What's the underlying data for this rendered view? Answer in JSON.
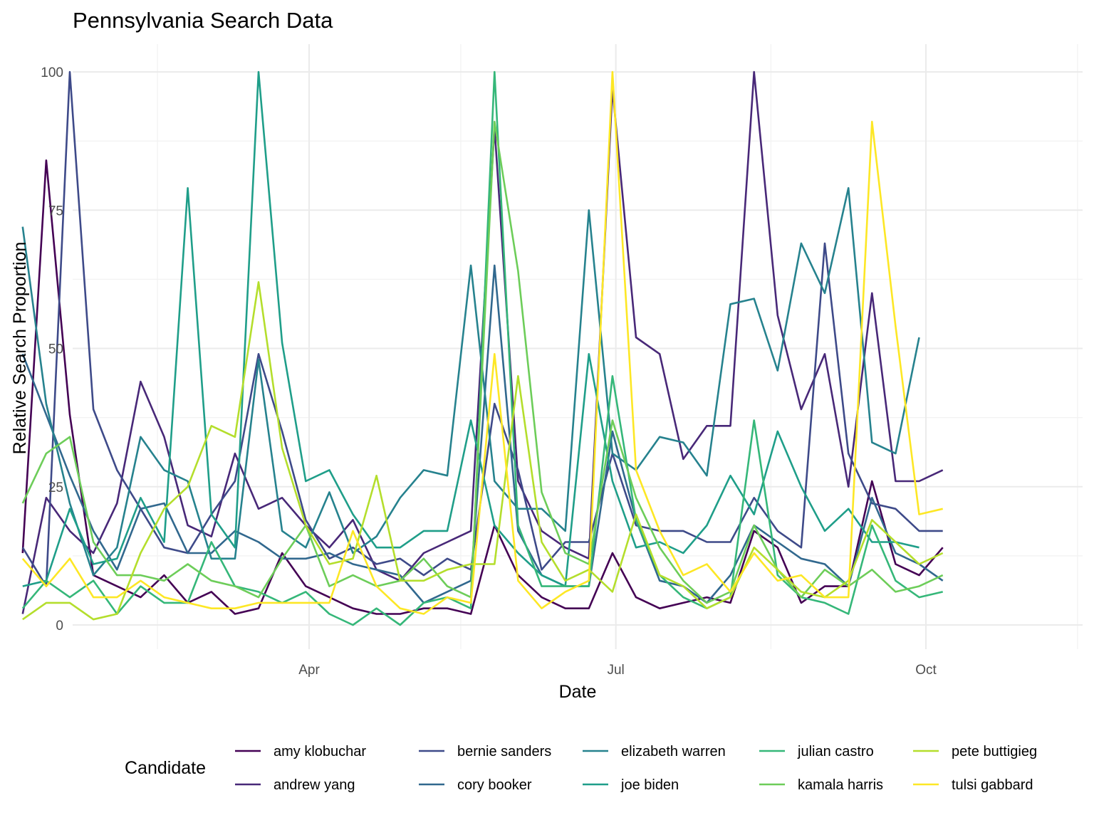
{
  "chart_data": {
    "type": "line",
    "title": "Pennsylvania Search Data",
    "xlabel": "Date",
    "ylabel": "Relative Search Proportion",
    "ylim": [
      0,
      100
    ],
    "yticks": [
      0,
      25,
      50,
      75,
      100
    ],
    "xticks": [
      {
        "label": "Apr",
        "date": "2019-04-01"
      },
      {
        "label": "Jul",
        "date": "2019-07-01"
      },
      {
        "label": "Oct",
        "date": "2019-10-01"
      }
    ],
    "grid": true,
    "legend": {
      "title": "Candidate",
      "position": "bottom"
    },
    "x": [
      "2019-01-06",
      "2019-01-13",
      "2019-01-20",
      "2019-01-27",
      "2019-02-03",
      "2019-02-10",
      "2019-02-17",
      "2019-02-24",
      "2019-03-03",
      "2019-03-10",
      "2019-03-17",
      "2019-03-24",
      "2019-03-31",
      "2019-04-07",
      "2019-04-14",
      "2019-04-21",
      "2019-04-28",
      "2019-05-05",
      "2019-05-12",
      "2019-05-19",
      "2019-05-26",
      "2019-06-02",
      "2019-06-09",
      "2019-06-16",
      "2019-06-23",
      "2019-06-30",
      "2019-07-07",
      "2019-07-14",
      "2019-07-21",
      "2019-07-28",
      "2019-08-04",
      "2019-08-11",
      "2019-08-18",
      "2019-08-25",
      "2019-09-01",
      "2019-09-08",
      "2019-09-15",
      "2019-09-22",
      "2019-09-29",
      "2019-10-06",
      "2019-10-13",
      "2019-10-20",
      "2019-10-27",
      "2019-11-03"
    ],
    "series": [
      {
        "name": "amy klobuchar",
        "color": "#440154",
        "values": [
          13,
          84,
          38,
          9,
          7,
          5,
          9,
          4,
          6,
          2,
          3,
          13,
          7,
          5,
          3,
          2,
          2,
          3,
          3,
          2,
          18,
          9,
          5,
          3,
          3,
          13,
          5,
          3,
          4,
          5,
          4,
          17,
          14,
          4,
          7,
          7,
          26,
          11,
          9,
          14,
          null,
          null,
          null,
          null
        ]
      },
      {
        "name": "andrew yang",
        "color": "#482878",
        "values": [
          2,
          23,
          17,
          13,
          22,
          44,
          34,
          18,
          16,
          31,
          21,
          23,
          18,
          14,
          19,
          10,
          8,
          13,
          15,
          17,
          90,
          26,
          17,
          14,
          12,
          97,
          52,
          49,
          30,
          36,
          36,
          100,
          56,
          39,
          49,
          25,
          60,
          26,
          26,
          28,
          null,
          null,
          null,
          null
        ]
      },
      {
        "name": "bernie sanders",
        "color": "#3E4A89",
        "values": [
          14,
          7,
          100,
          39,
          28,
          21,
          14,
          13,
          20,
          26,
          49,
          35,
          19,
          12,
          14,
          11,
          12,
          9,
          12,
          10,
          40,
          28,
          10,
          15,
          15,
          31,
          18,
          17,
          17,
          15,
          15,
          23,
          17,
          14,
          69,
          31,
          22,
          21,
          17,
          17,
          null,
          null,
          null,
          null
        ]
      },
      {
        "name": "cory booker",
        "color": "#31688E",
        "values": [
          49,
          38,
          27,
          17,
          10,
          21,
          22,
          13,
          13,
          17,
          15,
          12,
          12,
          13,
          11,
          10,
          9,
          4,
          6,
          8,
          65,
          17,
          9,
          7,
          7,
          35,
          19,
          8,
          7,
          4,
          9,
          18,
          15,
          12,
          11,
          7,
          23,
          13,
          11,
          8,
          null,
          null,
          null,
          null
        ]
      },
      {
        "name": "elizabeth warren",
        "color": "#26828E",
        "values": [
          72,
          40,
          22,
          9,
          14,
          34,
          28,
          26,
          12,
          12,
          48,
          17,
          14,
          24,
          13,
          16,
          23,
          28,
          27,
          65,
          26,
          21,
          21,
          17,
          75,
          31,
          28,
          34,
          33,
          27,
          58,
          59,
          46,
          69,
          60,
          79,
          33,
          31,
          52,
          null,
          null,
          null,
          null,
          null
        ]
      },
      {
        "name": "joe biden",
        "color": "#1F9E89",
        "values": [
          7,
          8,
          21,
          11,
          12,
          23,
          15,
          79,
          20,
          14,
          100,
          51,
          26,
          28,
          20,
          14,
          14,
          17,
          17,
          37,
          18,
          13,
          9,
          7,
          49,
          26,
          14,
          15,
          13,
          18,
          27,
          20,
          35,
          25,
          17,
          21,
          15,
          15,
          14,
          null,
          null,
          null,
          null,
          null
        ]
      },
      {
        "name": "julian castro",
        "color": "#35B779",
        "values": [
          3,
          8,
          5,
          8,
          2,
          7,
          4,
          4,
          15,
          7,
          6,
          4,
          6,
          2,
          0,
          3,
          0,
          4,
          5,
          3,
          100,
          18,
          7,
          7,
          7,
          45,
          19,
          9,
          5,
          3,
          5,
          37,
          9,
          5,
          4,
          2,
          18,
          8,
          5,
          6,
          null,
          null,
          null,
          null
        ]
      },
      {
        "name": "kamala harris",
        "color": "#6DCD59",
        "values": [
          22,
          31,
          34,
          15,
          9,
          9,
          8,
          11,
          8,
          7,
          5,
          12,
          18,
          7,
          9,
          7,
          8,
          12,
          7,
          5,
          91,
          64,
          24,
          13,
          11,
          37,
          23,
          14,
          8,
          4,
          6,
          18,
          10,
          5,
          10,
          7,
          10,
          6,
          7,
          9,
          null,
          null,
          null,
          null
        ]
      },
      {
        "name": "pete buttigieg",
        "color": "#B4DE2C",
        "values": [
          1,
          4,
          4,
          1,
          2,
          13,
          21,
          25,
          36,
          34,
          62,
          32,
          18,
          11,
          12,
          27,
          8,
          8,
          10,
          11,
          11,
          45,
          15,
          8,
          10,
          6,
          20,
          9,
          7,
          3,
          5,
          14,
          10,
          6,
          5,
          8,
          19,
          15,
          11,
          13,
          null,
          null,
          null,
          null
        ]
      },
      {
        "name": "tulsi gabbard",
        "color": "#FDE725",
        "values": [
          12,
          7,
          12,
          5,
          5,
          8,
          5,
          4,
          3,
          3,
          4,
          4,
          4,
          4,
          17,
          7,
          3,
          2,
          5,
          4,
          49,
          8,
          3,
          6,
          8,
          100,
          28,
          17,
          9,
          11,
          6,
          13,
          8,
          9,
          5,
          5,
          91,
          54,
          20,
          21,
          null,
          null,
          null,
          null
        ]
      }
    ]
  }
}
